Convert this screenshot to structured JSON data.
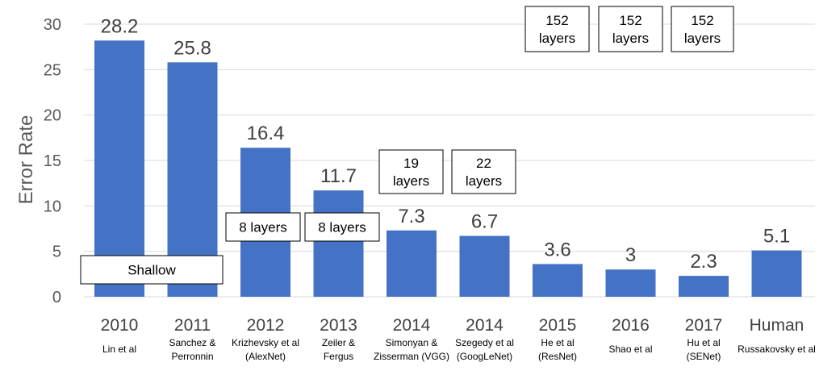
{
  "chart_data": {
    "type": "bar",
    "ylabel": "Error Rate",
    "ylim": [
      0,
      30
    ],
    "yticks": [
      0,
      5,
      10,
      15,
      20,
      25,
      30
    ],
    "grid": true,
    "bar_color": "#4472c4",
    "categories": [
      {
        "year": "2010",
        "ref": [
          "Lin et al"
        ],
        "value": 28.2,
        "label": "28.2"
      },
      {
        "year": "2011",
        "ref": [
          "Sanchez &",
          "Perronnin"
        ],
        "value": 25.8,
        "label": "25.8"
      },
      {
        "year": "2012",
        "ref": [
          "Krizhevsky et al",
          "(AlexNet)"
        ],
        "value": 16.4,
        "label": "16.4"
      },
      {
        "year": "2013",
        "ref": [
          "Zeiler &",
          "Fergus"
        ],
        "value": 11.7,
        "label": "11.7"
      },
      {
        "year": "2014",
        "ref": [
          "Simonyan &",
          "Zisserman (VGG)"
        ],
        "value": 7.3,
        "label": "7.3"
      },
      {
        "year": "2014",
        "ref": [
          "Szegedy et al",
          "(GoogLeNet)"
        ],
        "value": 6.7,
        "label": "6.7"
      },
      {
        "year": "2015",
        "ref": [
          "He et al",
          "(ResNet)"
        ],
        "value": 3.6,
        "label": "3.6"
      },
      {
        "year": "2016",
        "ref": [
          "Shao et al"
        ],
        "value": 3,
        "label": "3"
      },
      {
        "year": "2017",
        "ref": [
          "Hu et al",
          "(SENet)"
        ],
        "value": 2.3,
        "label": "2.3"
      },
      {
        "year": "Human",
        "ref": [
          "Russakovsky et al"
        ],
        "value": 5.1,
        "label": "5.1"
      }
    ],
    "annotations": [
      {
        "lines": [
          "Shallow"
        ]
      },
      {
        "lines": [
          "8 layers"
        ]
      },
      {
        "lines": [
          "8 layers"
        ]
      },
      {
        "lines": [
          "19",
          "layers"
        ]
      },
      {
        "lines": [
          "22",
          "layers"
        ]
      },
      {
        "lines": [
          "152",
          "layers"
        ]
      },
      {
        "lines": [
          "152",
          "layers"
        ]
      },
      {
        "lines": [
          "152",
          "layers"
        ]
      }
    ]
  }
}
